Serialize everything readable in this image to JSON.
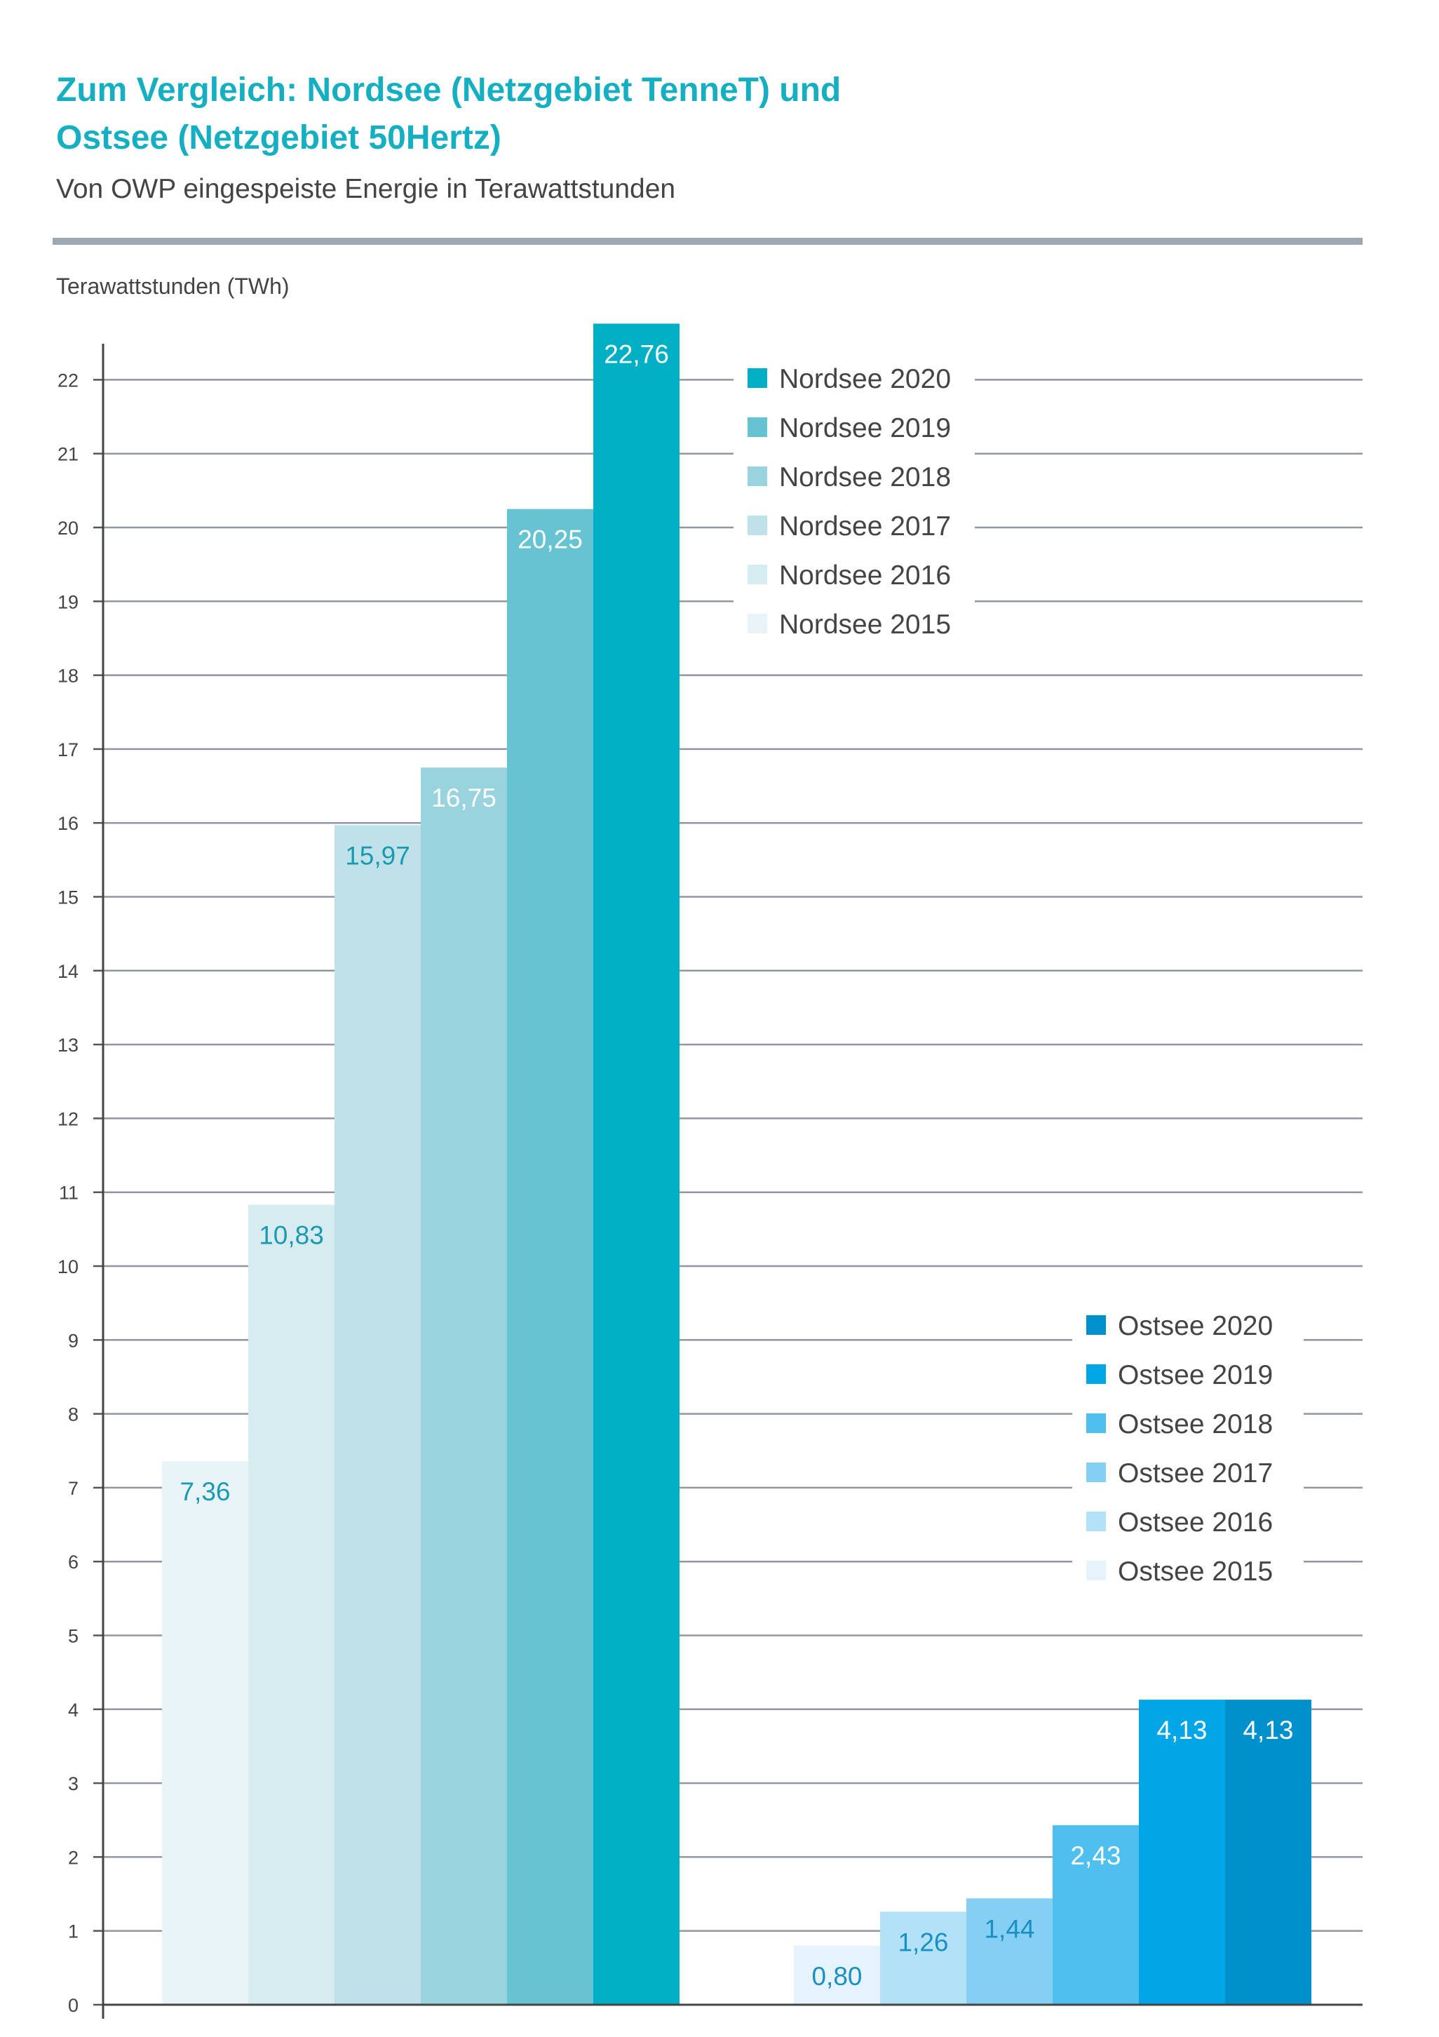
{
  "header": {
    "title_line1": "Zum Vergleich: Nordsee (Netzgebiet TenneT) und",
    "title_line2": "Ostsee (Netzgebiet 50Hertz)",
    "subtitle": "Von OWP eingespeiste Energie in Terawattstunden"
  },
  "chart_data": {
    "type": "bar",
    "ylabel": "Terawattstunden (TWh)",
    "ylim": [
      0,
      22.5
    ],
    "yticks": [
      0,
      1,
      2,
      3,
      4,
      5,
      6,
      7,
      8,
      9,
      10,
      11,
      12,
      13,
      14,
      15,
      16,
      17,
      18,
      19,
      20,
      21,
      22
    ],
    "grid": true,
    "groups": [
      {
        "name": "Nordsee",
        "series": [
          {
            "name": "Nordsee 2015",
            "value": 7.36,
            "label": "7,36",
            "color": "#e8f4f8",
            "label_color": "#1a9ab0"
          },
          {
            "name": "Nordsee 2016",
            "value": 10.83,
            "label": "10,83",
            "color": "#d7ecf1",
            "label_color": "#1a9ab0"
          },
          {
            "name": "Nordsee 2017",
            "value": 15.97,
            "label": "15,97",
            "color": "#bfe2ea",
            "label_color": "#1a9ab0"
          },
          {
            "name": "Nordsee 2018",
            "value": 16.75,
            "label": "16,75",
            "color": "#98d3de",
            "label_color": "#ffffff"
          },
          {
            "name": "Nordsee 2019",
            "value": 20.25,
            "label": "20,25",
            "color": "#66c3d2",
            "label_color": "#ffffff"
          },
          {
            "name": "Nordsee 2020",
            "value": 22.76,
            "label": "22,76",
            "color": "#00afc4",
            "label_color": "#ffffff"
          }
        ]
      },
      {
        "name": "Ostsee",
        "series": [
          {
            "name": "Ostsee 2015",
            "value": 0.8,
            "label": "0,80",
            "color": "#e4f3fc",
            "label_color": "#1a8fc4"
          },
          {
            "name": "Ostsee 2016",
            "value": 1.26,
            "label": "1,26",
            "color": "#b3e1f8",
            "label_color": "#1a8fc4"
          },
          {
            "name": "Ostsee 2017",
            "value": 1.44,
            "label": "1,44",
            "color": "#85cff5",
            "label_color": "#1a8fc4"
          },
          {
            "name": "Ostsee 2018",
            "value": 2.43,
            "label": "2,43",
            "color": "#4ebfee",
            "label_color": "#ffffff"
          },
          {
            "name": "Ostsee 2019",
            "value": 4.13,
            "label": "4,13",
            "color": "#00a6e6",
            "label_color": "#ffffff"
          },
          {
            "name": "Ostsee 2020",
            "value": 4.13,
            "label": "4,13",
            "color": "#0090cc",
            "label_color": "#ffffff"
          }
        ]
      }
    ],
    "legends": [
      {
        "placement": "top-center",
        "entries": [
          "Nordsee 2020",
          "Nordsee 2019",
          "Nordsee 2018",
          "Nordsee 2017",
          "Nordsee 2016",
          "Nordsee 2015"
        ]
      },
      {
        "placement": "middle-right",
        "entries": [
          "Ostsee 2020",
          "Ostsee 2019",
          "Ostsee 2018",
          "Ostsee 2017",
          "Ostsee 2016",
          "Ostsee 2015"
        ]
      }
    ]
  }
}
